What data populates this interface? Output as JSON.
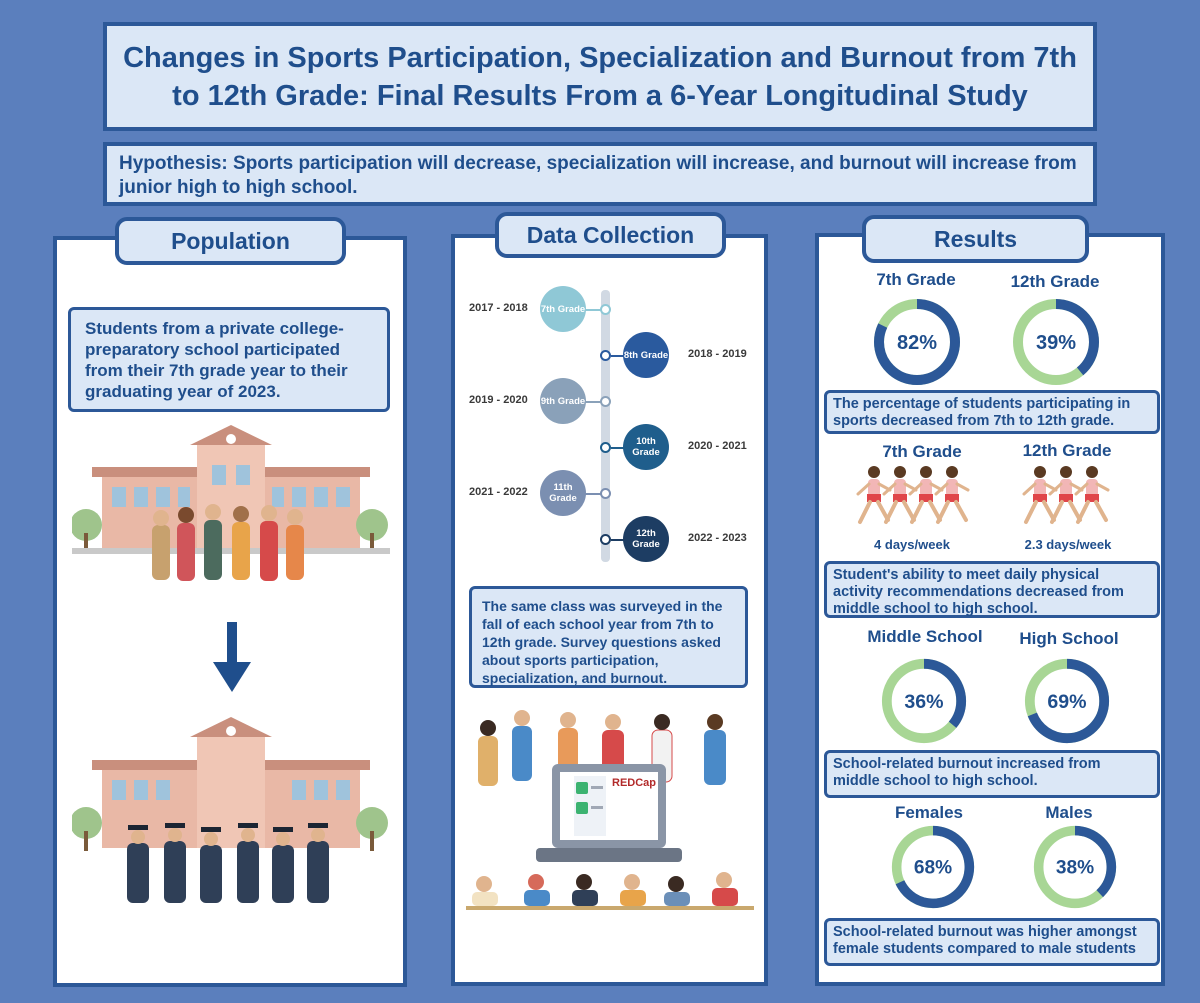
{
  "title": "Changes in Sports Participation, Specialization and Burnout from 7th to 12th Grade: Final Results From a 6-Year Longitudinal Study",
  "hypothesis": "Hypothesis: Sports participation will decrease, specialization will increase, and burnout will increase from junior high to high school.",
  "population": {
    "heading": "Population",
    "note": "Students from a private college-preparatory school participated from their 7th grade year to their graduating year of 2023."
  },
  "data_collection": {
    "heading": "Data Collection",
    "timeline": [
      {
        "grade": "7th Grade",
        "years": "2017 - 2018",
        "color": "#8fc8d6"
      },
      {
        "grade": "8th Grade",
        "years": "2018 - 2019",
        "color": "#2a5a9e"
      },
      {
        "grade": "9th Grade",
        "years": "2019 - 2020",
        "color": "#8aa1b9"
      },
      {
        "grade": "10th Grade",
        "years": "2020 - 2021",
        "color": "#1f5e8c"
      },
      {
        "grade": "11th Grade",
        "years": "2021 - 2022",
        "color": "#7b8fb1"
      },
      {
        "grade": "12th Grade",
        "years": "2022 - 2023",
        "color": "#1d3d63"
      }
    ],
    "note": "The same class was surveyed  in the fall of each school year from 7th to 12th grade. Survey questions asked about sports participation, specialization, and burnout.",
    "logo_text": "REDCap"
  },
  "results": {
    "heading": "Results",
    "participation": {
      "left_label": "7th Grade",
      "left_value": 82,
      "left_text": "82%",
      "right_label": "12th Grade",
      "right_value": 39,
      "right_text": "39%",
      "note": "The percentage of students participating in sports decreased from 7th to 12th grade."
    },
    "activity": {
      "left_label": "7th Grade",
      "left_sub": "4 days/week",
      "left_runners": 4,
      "right_label": "12th Grade",
      "right_sub": "2.3 days/week",
      "right_runners": 3,
      "note": "Student's ability to meet daily physical activity recommendations decreased from middle school to high school."
    },
    "burnout_school": {
      "left_label": "Middle School",
      "left_value": 36,
      "left_text": "36%",
      "right_label": "High School",
      "right_value": 69,
      "right_text": "69%",
      "note": "School-related burnout increased from middle school to high school."
    },
    "burnout_gender": {
      "left_label": "Females",
      "left_value": 68,
      "left_text": "68%",
      "right_label": "Males",
      "right_value": 38,
      "right_text": "38%",
      "note": "School-related burnout was higher amongst female students compared to male students"
    }
  },
  "colors": {
    "background": "#5b7fbd",
    "box_fill": "#dbe7f6",
    "border": "#2c5898",
    "text": "#1f4e8c",
    "donut_value": "#2c5898",
    "donut_rest": "#a8d695"
  }
}
